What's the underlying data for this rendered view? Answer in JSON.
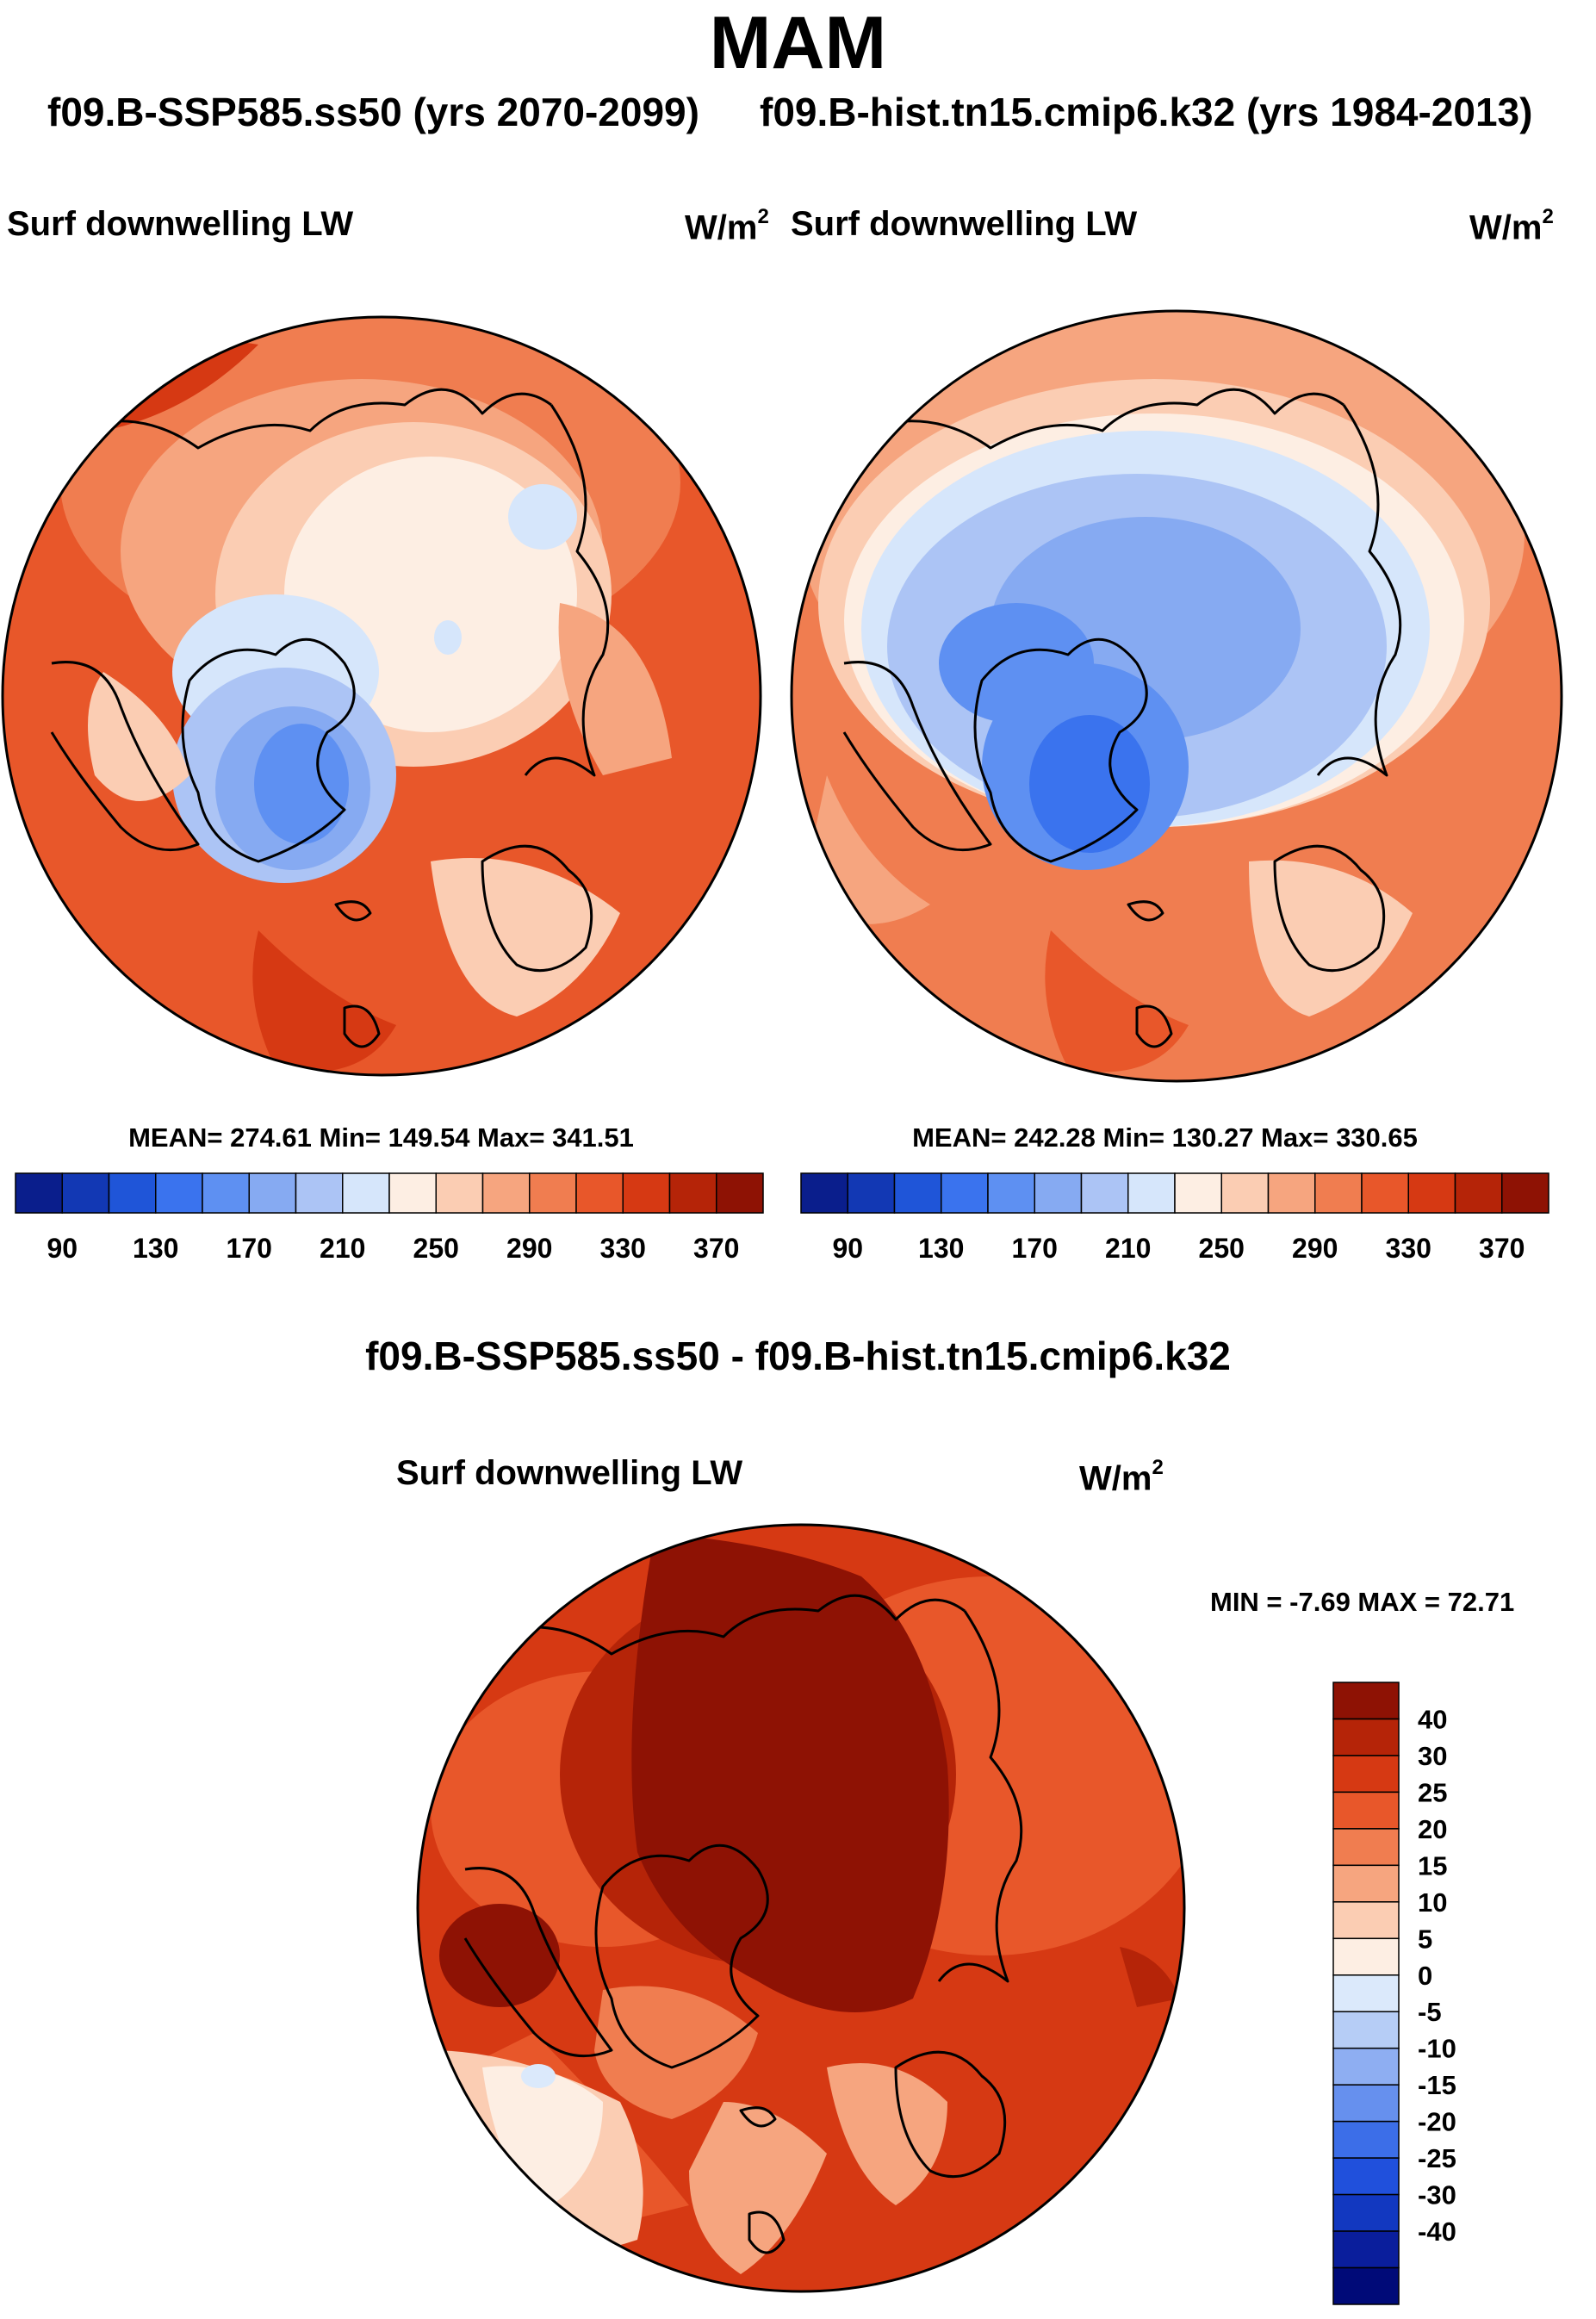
{
  "title": "MAM",
  "subtitles": {
    "left": "f09.B-SSP585.ss50 (yrs 2070-2099)",
    "right": "f09.B-hist.tn15.cmip6.k32 (yrs 1984-2013)"
  },
  "panels": {
    "left": {
      "field": "Surf downwelling LW",
      "units_base": "W/m",
      "units_exp": "2",
      "stats": "MEAN= 274.61  Min= 149.54  Max= 341.51"
    },
    "right": {
      "field": "Surf downwelling LW",
      "units_base": "W/m",
      "units_exp": "2",
      "stats": "MEAN= 242.28  Min= 130.27  Max= 330.65"
    },
    "diff": {
      "title": "f09.B-SSP585.ss50 - f09.B-hist.tn15.cmip6.k32",
      "field": "Surf downwelling LW",
      "units_base": "W/m",
      "units_exp": "2",
      "stats": "MIN =  -7.69 MAX =  72.71"
    }
  },
  "colorbars": {
    "abs": {
      "colors": [
        "#0a1e8c",
        "#1238b4",
        "#1f55d8",
        "#3a73ee",
        "#5e90f2",
        "#86aaf2",
        "#acc4f5",
        "#d6e6fb",
        "#fdeee3",
        "#fbcdb3",
        "#f6a57f",
        "#f07d50",
        "#e8572a",
        "#d63913",
        "#b52408",
        "#8e1204"
      ],
      "labels": [
        "90",
        "130",
        "170",
        "210",
        "250",
        "290",
        "330",
        "370"
      ]
    },
    "diff": {
      "colors": [
        "#000a78",
        "#0a1e9c",
        "#1238c0",
        "#2050dc",
        "#3c6ee8",
        "#6690ee",
        "#8eaef2",
        "#b6cdf6",
        "#dbe9fb",
        "#fdeee3",
        "#fbcdb3",
        "#f6a57f",
        "#f07d50",
        "#e8572a",
        "#d63913",
        "#b52408",
        "#8e1204"
      ],
      "labels": [
        "40",
        "30",
        "25",
        "20",
        "15",
        "10",
        "5",
        "0",
        "-5",
        "-10",
        "-15",
        "-20",
        "-25",
        "-30",
        "-40"
      ]
    }
  }
}
